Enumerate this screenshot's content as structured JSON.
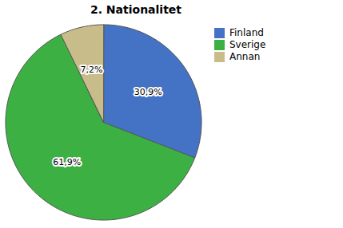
{
  "chart_data": {
    "type": "pie",
    "title": "2. Nationalitet",
    "categories": [
      "Finland",
      "Sverige",
      "Annan"
    ],
    "values": [
      30.9,
      61.9,
      7.2
    ],
    "value_labels": [
      "30,9%",
      "61,9%",
      "7,2%"
    ],
    "colors": [
      "#4472C4",
      "#3CB043",
      "#C8BC8A"
    ],
    "data_labels": true,
    "legend": "upper right"
  }
}
